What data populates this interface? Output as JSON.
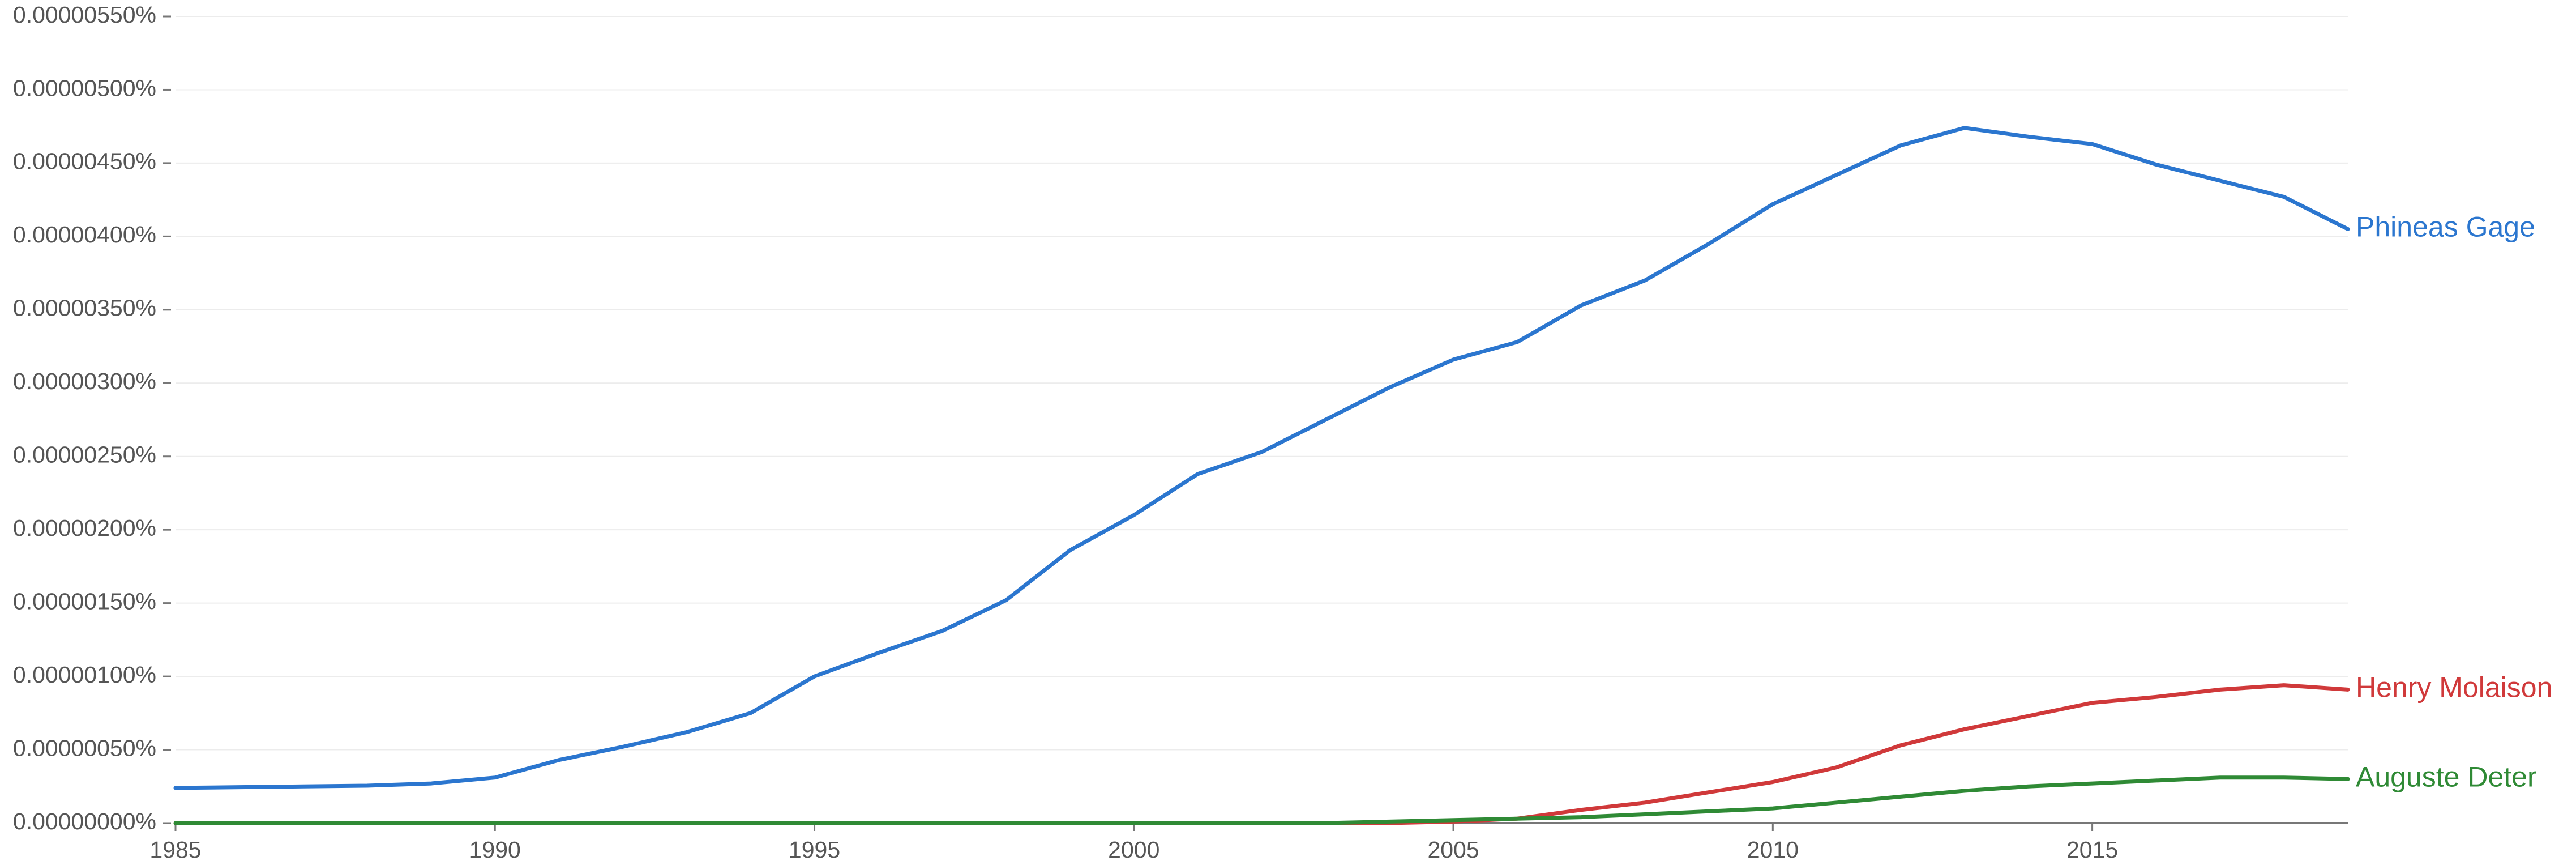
{
  "chart_data": {
    "type": "line",
    "x": [
      1985,
      1986,
      1987,
      1988,
      1989,
      1990,
      1991,
      1992,
      1993,
      1994,
      1995,
      1996,
      1997,
      1998,
      1999,
      2000,
      2001,
      2002,
      2003,
      2004,
      2005,
      2006,
      2007,
      2008,
      2009,
      2010,
      2011,
      2012,
      2013,
      2014,
      2015,
      2016,
      2017,
      2018,
      2019
    ],
    "series": [
      {
        "name": "Phineas Gage",
        "color": "#2b76cf",
        "values": [
          2.4e-07,
          2.45e-07,
          2.5e-07,
          2.55e-07,
          2.7e-07,
          3.1e-07,
          4.3e-07,
          5.2e-07,
          6.2e-07,
          7.5e-07,
          1e-06,
          1.16e-06,
          1.31e-06,
          1.52e-06,
          1.86e-06,
          2.1e-06,
          2.38e-06,
          2.53e-06,
          2.75e-06,
          2.97e-06,
          3.16e-06,
          3.28e-06,
          3.53e-06,
          3.7e-06,
          3.95e-06,
          4.22e-06,
          4.42e-06,
          4.62e-06,
          4.74e-06,
          4.68e-06,
          4.63e-06,
          4.49e-06,
          4.38e-06,
          4.27e-06,
          4.05e-06
        ]
      },
      {
        "name": "Henry Molaison",
        "color": "#d0393a",
        "values": [
          0,
          0,
          0,
          0,
          0,
          0,
          0,
          0,
          0,
          0,
          0,
          0,
          0,
          0,
          0,
          0,
          0,
          0,
          0,
          0,
          1e-08,
          3e-08,
          9e-08,
          1.4e-07,
          2.1e-07,
          2.8e-07,
          3.8e-07,
          5.3e-07,
          6.4e-07,
          7.3e-07,
          8.2e-07,
          8.6e-07,
          9.1e-07,
          9.4e-07,
          9.1e-07
        ]
      },
      {
        "name": "Auguste Deter",
        "color": "#2f8a35",
        "values": [
          0,
          0,
          0,
          0,
          0,
          0,
          0,
          0,
          0,
          0,
          0,
          0,
          0,
          0,
          0,
          0,
          0,
          0,
          0,
          1e-08,
          2e-08,
          3e-08,
          4e-08,
          6e-08,
          8e-08,
          1e-07,
          1.4e-07,
          1.8e-07,
          2.2e-07,
          2.5e-07,
          2.7e-07,
          2.9e-07,
          3.1e-07,
          3.1e-07,
          3e-07
        ]
      }
    ],
    "xlim": [
      1985,
      2019
    ],
    "xticks": [
      1985,
      1990,
      1995,
      2000,
      2005,
      2010,
      2015
    ],
    "ylim": [
      0,
      5.5e-06
    ],
    "yticks": [
      {
        "value": 0,
        "label": "0.00000000%"
      },
      {
        "value": 5e-07,
        "label": "0.00000050%"
      },
      {
        "value": 1e-06,
        "label": "0.00000100%"
      },
      {
        "value": 1.5e-06,
        "label": "0.00000150%"
      },
      {
        "value": 2e-06,
        "label": "0.00000200%"
      },
      {
        "value": 2.5e-06,
        "label": "0.00000250%"
      },
      {
        "value": 3e-06,
        "label": "0.00000300%"
      },
      {
        "value": 3.5e-06,
        "label": "0.00000350%"
      },
      {
        "value": 4e-06,
        "label": "0.00000400%"
      },
      {
        "value": 4.5e-06,
        "label": "0.00000450%"
      },
      {
        "value": 5e-06,
        "label": "0.00000500%"
      },
      {
        "value": 5.5e-06,
        "label": "0.00000550%"
      }
    ],
    "grid": true
  }
}
